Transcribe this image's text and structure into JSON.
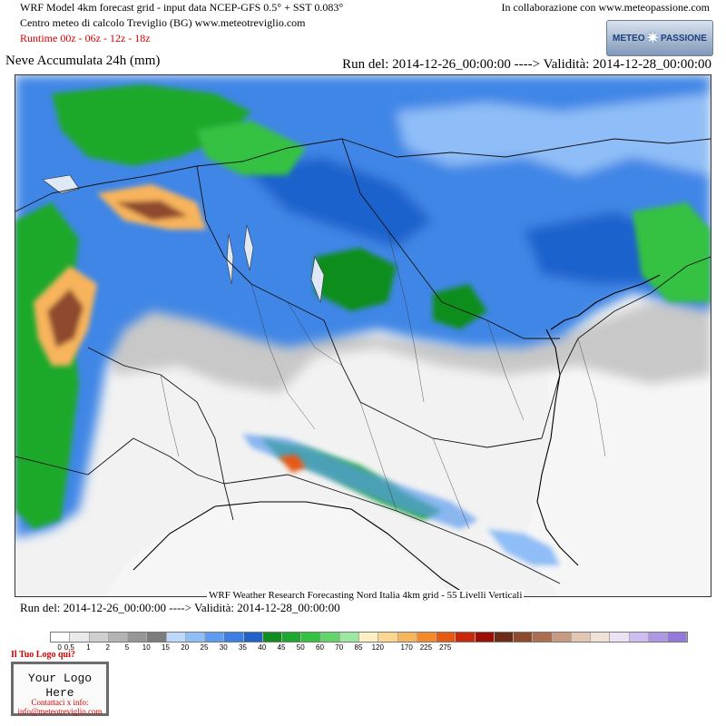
{
  "header": {
    "line1": "WRF Model 4km forecast grid - input data NCEP-GFS 0.5° + SST 0.083°",
    "line2": "Centro meteo di calcolo Treviglio (BG) www.meteotreviglio.com",
    "runtime": "Runtime 00z - 06z - 12z - 18z",
    "collab": "In collaborazione con www.meteopassione.com",
    "logo_left": "METEO",
    "logo_right": "PASSIONE"
  },
  "title": "Neve Accumulata 24h (mm)",
  "run_top": "Run del: 2014-12-26_00:00:00 ----> Validità: 2014-12-28_00:00:00",
  "credit": "WRF Weather Research Forecasting Nord Italia 4km grid - 55 Livelli Verticali",
  "run_bottom": "Run del: 2014-12-26_00:00:00 ----> Validità: 2014-12-28_00:00:00",
  "legend": {
    "colors": [
      "#ffffff",
      "#e9e9e9",
      "#cfcfcf",
      "#b3b3b3",
      "#969696",
      "#7c7c7c",
      "#bcd8fb",
      "#8fbdf7",
      "#5e9cef",
      "#3a7fe3",
      "#1f62cc",
      "#0f8d1e",
      "#1aa92c",
      "#35c142",
      "#62d46a",
      "#9de89f",
      "#fff0c4",
      "#fcd58f",
      "#f8b45b",
      "#f28a2c",
      "#e85913",
      "#c9270a",
      "#9c0e04",
      "#6c2c18",
      "#8e4a2d",
      "#ac6c4e",
      "#c89a82",
      "#e2c5b2",
      "#f1e2d6",
      "#ebe3f5",
      "#cdbdf0",
      "#ae98e6",
      "#9478da"
    ],
    "ticks": [
      {
        "label": "0",
        "index": 1
      },
      {
        "label": "0.5",
        "index": 2
      },
      {
        "label": "1",
        "index": 4
      },
      {
        "label": "2",
        "index": 6
      },
      {
        "label": "5",
        "index": 8
      },
      {
        "label": "10",
        "index": 10
      },
      {
        "label": "15",
        "index": 12
      },
      {
        "label": "20",
        "index": 14
      },
      {
        "label": "25",
        "index": 16
      },
      {
        "label": "30",
        "index": 18
      },
      {
        "label": "35",
        "index": 20
      },
      {
        "label": "40",
        "index": 22
      },
      {
        "label": "45",
        "index": 24
      },
      {
        "label": "50",
        "index": 26
      },
      {
        "label": "60",
        "index": 28
      },
      {
        "label": "70",
        "index": 30
      },
      {
        "label": "85",
        "index": 32
      },
      {
        "label": "120",
        "index": 34
      },
      {
        "label": "170",
        "index": 37
      },
      {
        "label": "225",
        "index": 39
      },
      {
        "label": "275",
        "index": 41
      }
    ]
  },
  "your_logo": {
    "header": "Il Tuo Logo qui?",
    "text": "Your Logo Here",
    "contact_line1": "Contattaci x info:",
    "contact_line2": "info@meteotreviglio.com"
  }
}
